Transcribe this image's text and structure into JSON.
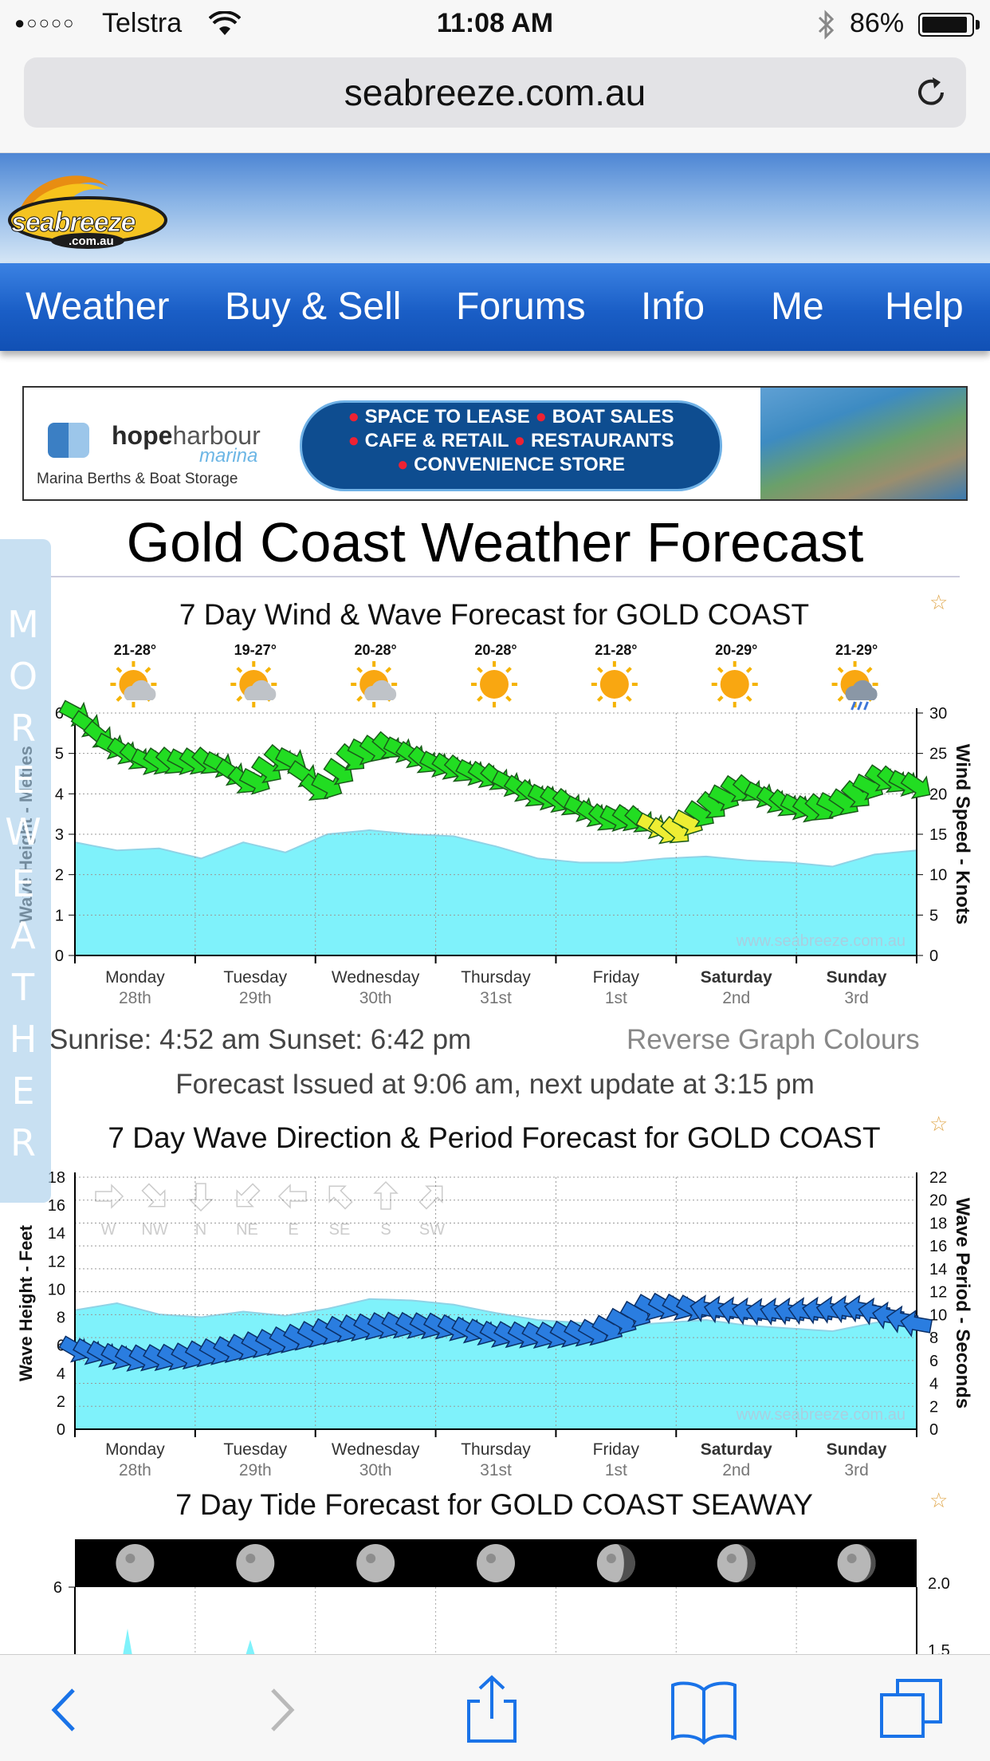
{
  "status": {
    "carrier": "Telstra",
    "time": "11:08 AM",
    "battery": "86%"
  },
  "browser": {
    "url": "seabreeze.com.au"
  },
  "logo": {
    "text": "seabreeze",
    "sub": ".com.au"
  },
  "nav": [
    "Weather",
    "Buy & Sell",
    "Forums",
    "Info",
    "Me",
    "Help"
  ],
  "ad": {
    "brand_a": "hope",
    "brand_b": "harbour",
    "brand_c": "marina",
    "tagline": "Marina Berths & Boat Storage",
    "line1a": "SPACE TO LEASE",
    "line1b": "BOAT SALES",
    "line2a": "CAFE & RETAIL",
    "line2b": "RESTAURANTS",
    "line3": "CONVENIENCE STORE"
  },
  "page": {
    "title": "Gold Coast Weather Forecast",
    "more_weather": [
      "M",
      "O",
      "R",
      "E",
      "W",
      "E",
      "A",
      "T",
      "H",
      "E",
      "R"
    ]
  },
  "chart_data": [
    {
      "type": "area",
      "title": "7 Day Wind & Wave Forecast for GOLD COAST",
      "ylabel": "Wave Height - Metres",
      "y2label": "Wind Speed - Knots",
      "ylim": [
        0,
        6
      ],
      "y2lim": [
        0,
        30
      ],
      "yticks": [
        "0",
        "1",
        "2",
        "3",
        "4",
        "5",
        "6"
      ],
      "y2ticks": [
        "0",
        "5",
        "10",
        "15",
        "20",
        "25",
        "30"
      ],
      "days": [
        {
          "day": "Monday",
          "date": "28th",
          "temp": "21-28°",
          "icon": "sun-cloud-icon"
        },
        {
          "day": "Tuesday",
          "date": "29th",
          "temp": "19-27°",
          "icon": "sun-cloud-icon"
        },
        {
          "day": "Wednesday",
          "date": "30th",
          "temp": "20-28°",
          "icon": "sun-cloud-icon"
        },
        {
          "day": "Thursday",
          "date": "31st",
          "temp": "20-28°",
          "icon": "sun-icon"
        },
        {
          "day": "Friday",
          "date": "1st",
          "temp": "21-28°",
          "icon": "sun-icon"
        },
        {
          "day": "Saturday",
          "date": "2nd",
          "temp": "20-29°",
          "icon": "sun-icon"
        },
        {
          "day": "Sunday",
          "date": "3rd",
          "temp": "21-29°",
          "icon": "storm-cloud-icon"
        }
      ],
      "series": [
        {
          "name": "Wave Height (m)",
          "values": [
            2.8,
            2.6,
            2.65,
            2.4,
            2.8,
            2.55,
            3.0,
            3.1,
            3.0,
            2.95,
            2.7,
            2.4,
            2.3,
            2.3,
            2.4,
            2.45,
            2.35,
            2.3,
            2.2,
            2.5,
            2.6
          ]
        },
        {
          "name": "Wind Speed (knots)",
          "values": [
            30,
            26,
            24,
            24,
            24,
            21,
            25,
            20,
            25,
            26,
            24,
            23,
            22,
            20,
            19,
            17,
            17,
            15,
            18,
            21,
            19,
            18,
            19,
            22,
            21
          ]
        }
      ],
      "watermark": "www.seabreeze.com.au"
    },
    {
      "type": "area",
      "title": "7 Day Wave Direction & Period Forecast for GOLD COAST",
      "ylabel": "Wave Height - Feet",
      "y2label": "Wave Period - Seconds",
      "ylim": [
        0,
        18
      ],
      "y2lim": [
        0,
        22
      ],
      "yticks": [
        "0",
        "2",
        "4",
        "6",
        "8",
        "10",
        "12",
        "14",
        "16",
        "18"
      ],
      "y2ticks": [
        "0",
        "2",
        "4",
        "6",
        "8",
        "10",
        "12",
        "14",
        "16",
        "18",
        "20",
        "22"
      ],
      "legend": [
        "W",
        "NW",
        "N",
        "NE",
        "E",
        "SE",
        "S",
        "SW"
      ],
      "series": [
        {
          "name": "Wave Height (ft)",
          "values": [
            8.5,
            9.0,
            8.2,
            8.0,
            8.4,
            8.1,
            8.6,
            9.3,
            9.2,
            8.9,
            8.3,
            7.8,
            7.6,
            7.4,
            7.6,
            7.8,
            7.4,
            7.2,
            7.0,
            7.6,
            8.0
          ]
        },
        {
          "name": "Wave Period (s)",
          "values": [
            7,
            6.2,
            6.3,
            7,
            7.8,
            8.7,
            9.1,
            9.0,
            8.3,
            8.2,
            8.5,
            10.8,
            10.5,
            10.2,
            10.3,
            10.5,
            9.2
          ]
        }
      ],
      "watermark": "www.seabreeze.com.au"
    }
  ],
  "sun": {
    "text": "Sunrise: 4:52 am  Sunset: 6:42 pm",
    "reverse": "Reverse Graph Colours",
    "issued": "Forecast Issued at 9:06 am, next update at 3:15 pm"
  },
  "tide": {
    "title": "7 Day Tide Forecast for GOLD COAST SEAWAY",
    "left_tick": "6",
    "right_ticks": [
      "2.0",
      "1.5"
    ]
  },
  "colors": {
    "nav": "#1a5ec6",
    "wave": "#7ff2fb",
    "wind": "#22dd22",
    "windlow": "#eeee33",
    "period": "#2a7de0"
  }
}
